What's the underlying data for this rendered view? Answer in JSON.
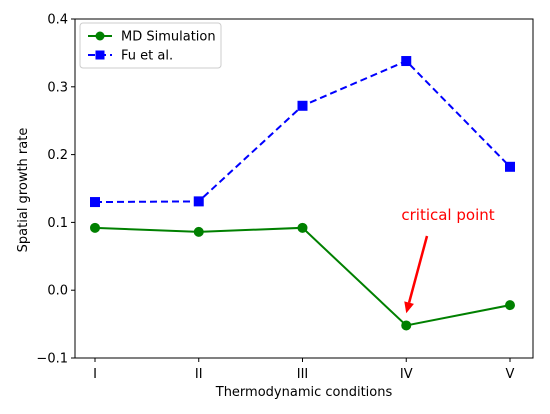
{
  "chart_data": {
    "type": "line",
    "title": "",
    "xlabel": "Thermodynamic conditions",
    "ylabel": "Spatial growth rate",
    "categories": [
      "I",
      "II",
      "III",
      "IV",
      "V"
    ],
    "ylim": [
      -0.1,
      0.4
    ],
    "yticks": [
      -0.1,
      0.0,
      0.1,
      0.2,
      0.3,
      0.4
    ],
    "ytick_labels": [
      "−0.1",
      "0.0",
      "0.1",
      "0.2",
      "0.3",
      "0.4"
    ],
    "grid": false,
    "legend_position": "top-left",
    "series": [
      {
        "name": "MD Simulation",
        "values": [
          0.092,
          0.086,
          0.092,
          -0.052,
          -0.022
        ],
        "color": "#008000",
        "linestyle": "solid",
        "marker": "circle"
      },
      {
        "name": "Fu et al.",
        "values": [
          0.13,
          0.131,
          0.272,
          0.338,
          0.182
        ],
        "color": "#0000ff",
        "linestyle": "dashed",
        "marker": "square"
      }
    ],
    "annotations": [
      {
        "text": "critical point",
        "color": "#ff0000",
        "points_to": {
          "category": "IV",
          "value": -0.034
        }
      }
    ]
  }
}
